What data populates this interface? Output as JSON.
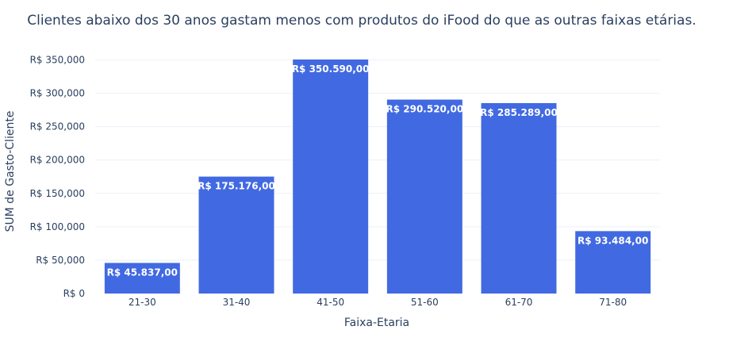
{
  "chart_data": {
    "type": "bar",
    "title": "Clientes abaixo dos 30 anos gastam menos com produtos do iFood do que as outras faixas etárias.",
    "xlabel": "Faixa-Etaria",
    "ylabel": "SUM de Gasto-Cliente",
    "categories": [
      "21-30",
      "31-40",
      "41-50",
      "51-60",
      "61-70",
      "71-80"
    ],
    "values": [
      45837,
      175176,
      350590,
      290520,
      285289,
      93484
    ],
    "data_labels": [
      "R$ 45.837,00",
      "R$ 175.176,00",
      "R$ 350.590,00",
      "R$ 290.520,00",
      "R$ 285.289,00",
      "R$ 93.484,00"
    ],
    "ylim": [
      0,
      350590
    ],
    "yticks": [
      0,
      50000,
      100000,
      150000,
      200000,
      250000,
      300000,
      350000
    ],
    "ytick_labels": [
      "R$ 0",
      "R$ 50,000",
      "R$ 100,000",
      "R$ 150,000",
      "R$ 200,000",
      "R$ 250,000",
      "R$ 300,000",
      "R$ 350,000"
    ],
    "bar_color": "#4169e1",
    "grid": true,
    "legend": false
  }
}
